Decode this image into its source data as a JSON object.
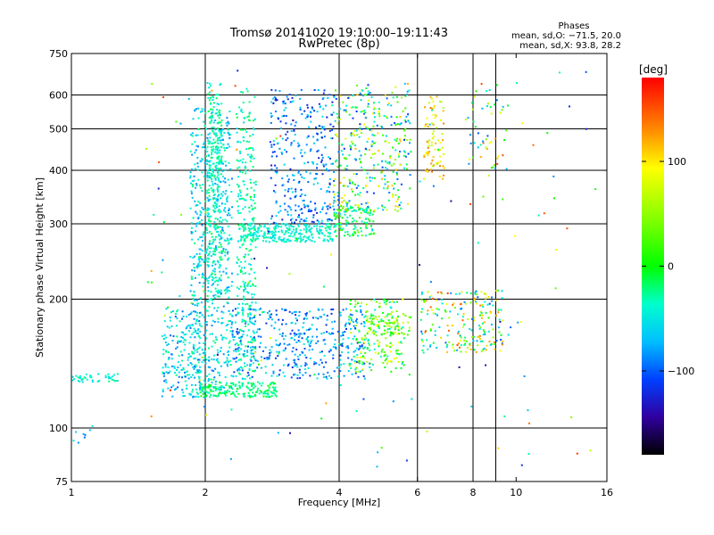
{
  "chart_data": {
    "type": "scatter",
    "title": "Tromsø 20141020 19:10:00–19:11:43",
    "subtitle": "RwPretec (8p)",
    "xlabel": "Frequency [MHz]",
    "ylabel": "Stationary phase Virtual Height [km]",
    "x_scale": "log",
    "y_scale": "log",
    "xlim": [
      1,
      16
    ],
    "ylim": [
      75,
      750
    ],
    "x_ticks": [
      1,
      2,
      4,
      6,
      8,
      10,
      16
    ],
    "y_ticks": [
      75,
      100,
      200,
      300,
      400,
      500,
      600,
      750
    ],
    "grid_x": [
      2,
      4,
      6,
      8,
      9
    ],
    "grid_y": [
      100,
      200,
      300,
      400,
      500,
      600
    ],
    "stats": {
      "heading": "Phases",
      "line_o": "mean, sd,O: −71.5, 20.0",
      "line_x": "mean, sd,X:  93.8, 28.2"
    },
    "colorbar": {
      "label": "[deg]",
      "ticks": [
        "100",
        "0",
        "−100"
      ],
      "tick_values": [
        100,
        0,
        -100
      ],
      "range": [
        -180,
        180
      ]
    },
    "clusters": [
      {
        "x": [
          1.0,
          1.3
        ],
        "y": [
          128,
          134
        ],
        "phase": [
          -60,
          -20
        ],
        "n": 45
      },
      {
        "x": [
          1.0,
          1.12
        ],
        "y": [
          92,
          106
        ],
        "phase": [
          -100,
          -40
        ],
        "n": 8
      },
      {
        "x": [
          1.6,
          1.95
        ],
        "y": [
          118,
          190
        ],
        "phase": [
          -100,
          -20
        ],
        "n": 180
      },
      {
        "x": [
          1.85,
          2.3
        ],
        "y": [
          118,
          560
        ],
        "phase": [
          -90,
          -20
        ],
        "n": 650
      },
      {
        "x": [
          2.02,
          2.18
        ],
        "y": [
          200,
          640
        ],
        "phase": [
          -60,
          -10
        ],
        "n": 280
      },
      {
        "x": [
          2.35,
          2.6
        ],
        "y": [
          130,
          620
        ],
        "phase": [
          -60,
          -10
        ],
        "n": 300
      },
      {
        "x": [
          1.95,
          2.9
        ],
        "y": [
          118,
          128
        ],
        "phase": [
          -40,
          0
        ],
        "n": 180
      },
      {
        "x": [
          2.4,
          3.9
        ],
        "y": [
          272,
          300
        ],
        "phase": [
          -60,
          -20
        ],
        "n": 260
      },
      {
        "x": [
          2.3,
          4.6
        ],
        "y": [
          130,
          190
        ],
        "phase": [
          -120,
          -40
        ],
        "n": 420
      },
      {
        "x": [
          2.8,
          3.9
        ],
        "y": [
          300,
          620
        ],
        "phase": [
          -130,
          -50
        ],
        "n": 320
      },
      {
        "x": [
          3.9,
          4.8
        ],
        "y": [
          280,
          330
        ],
        "phase": [
          -60,
          40
        ],
        "n": 130
      },
      {
        "x": [
          3.9,
          5.8
        ],
        "y": [
          320,
          640
        ],
        "phase": [
          -120,
          120
        ],
        "n": 340
      },
      {
        "x": [
          4.2,
          5.6
        ],
        "y": [
          135,
          200
        ],
        "phase": [
          -60,
          100
        ],
        "n": 180
      },
      {
        "x": [
          4.6,
          5.8
        ],
        "y": [
          165,
          185
        ],
        "phase": [
          -20,
          90
        ],
        "n": 70
      },
      {
        "x": [
          6.2,
          6.9
        ],
        "y": [
          380,
          600
        ],
        "phase": [
          60,
          140
        ],
        "n": 80
      },
      {
        "x": [
          6.1,
          7.6
        ],
        "y": [
          150,
          210
        ],
        "phase": [
          -100,
          160
        ],
        "n": 90
      },
      {
        "x": [
          7.5,
          9.4
        ],
        "y": [
          150,
          210
        ],
        "phase": [
          -110,
          140
        ],
        "n": 120
      },
      {
        "x": [
          7.8,
          9.6
        ],
        "y": [
          400,
          640
        ],
        "phase": [
          -110,
          160
        ],
        "n": 50
      },
      {
        "x": [
          1.4,
          15.5
        ],
        "y": [
          80,
          700
        ],
        "phase": [
          -150,
          170
        ],
        "n": 150
      }
    ]
  }
}
